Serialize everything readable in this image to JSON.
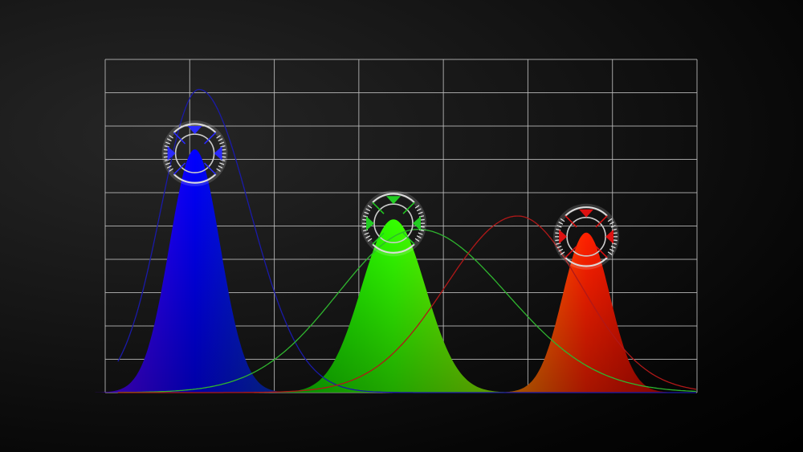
{
  "chart_data": {
    "type": "area",
    "title": "",
    "xlabel": "",
    "ylabel": "",
    "xlim": [
      0,
      7
    ],
    "ylim": [
      0,
      10
    ],
    "grid": true,
    "grid_color": "#bdbdbd",
    "filled_peaks": [
      {
        "center": 1.06,
        "height": 7.3,
        "sigma": 0.3,
        "colors": [
          "#6a00ff",
          "#0000ff",
          "#0a3fb0"
        ]
      },
      {
        "center": 3.41,
        "height": 5.2,
        "sigma": 0.38,
        "colors": [
          "#00c800",
          "#33ff00",
          "#a8e800"
        ]
      },
      {
        "center": 5.69,
        "height": 4.8,
        "sigma": 0.28,
        "colors": [
          "#ffa000",
          "#ff2000",
          "#c00000"
        ]
      }
    ],
    "outline_curves": [
      {
        "center": 1.11,
        "height": 9.1,
        "sigma_left": 0.45,
        "sigma_right": 0.6,
        "color": "#1a1aa8"
      },
      {
        "center": 3.7,
        "height": 4.9,
        "sigma_left": 0.95,
        "sigma_right": 1.05,
        "color": "#2fb52f"
      },
      {
        "center": 4.88,
        "height": 5.3,
        "sigma_left": 0.85,
        "sigma_right": 0.75,
        "color": "#b01818"
      }
    ],
    "markers": [
      {
        "series": 0,
        "color": "#2a2aff"
      },
      {
        "series": 1,
        "color": "#22cc22"
      },
      {
        "series": 2,
        "color": "#dd1111"
      }
    ]
  }
}
